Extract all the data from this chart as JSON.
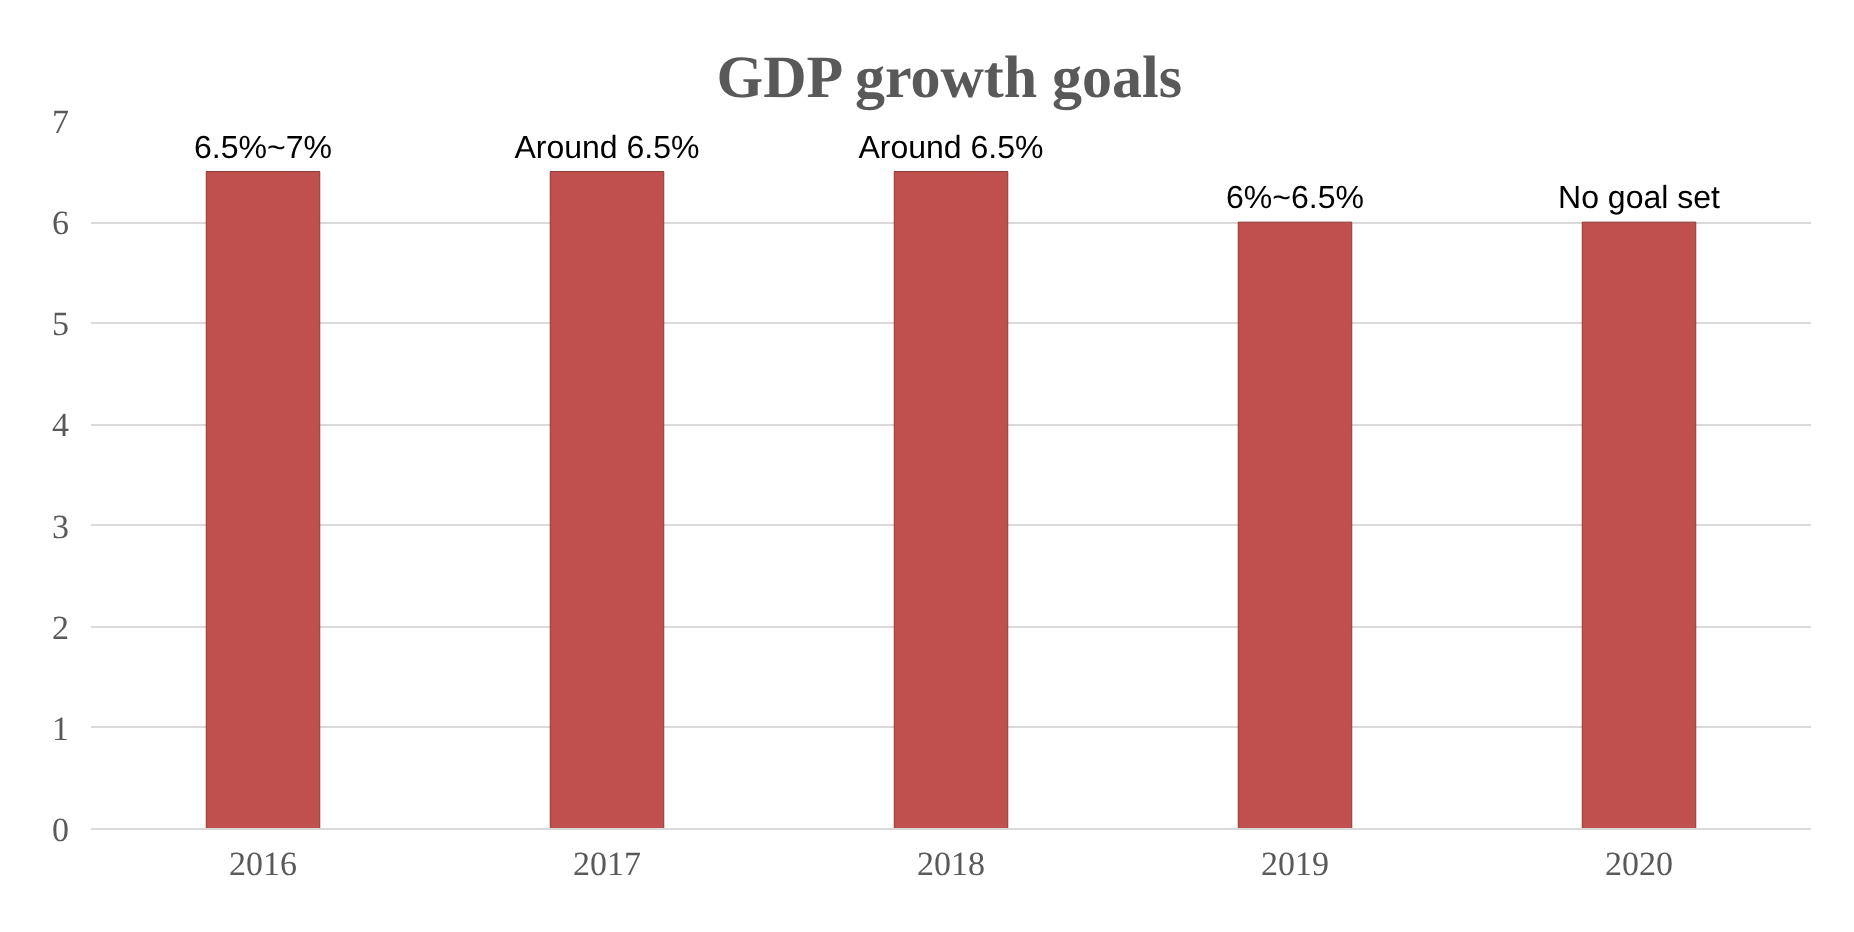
{
  "chart_data": {
    "type": "bar",
    "title": "GDP growth goals",
    "categories": [
      "2016",
      "2017",
      "2018",
      "2019",
      "2020"
    ],
    "values": [
      6.5,
      6.5,
      6.5,
      6,
      6
    ],
    "value_labels": [
      "6.5%~7%",
      "Around 6.5%",
      "Around 6.5%",
      "6%~6.5%",
      "No goal set"
    ],
    "color": "#c0504d",
    "ylim": [
      0,
      7
    ],
    "yticks": [
      0,
      1,
      2,
      3,
      4,
      5,
      6,
      7
    ],
    "grid": "y"
  }
}
